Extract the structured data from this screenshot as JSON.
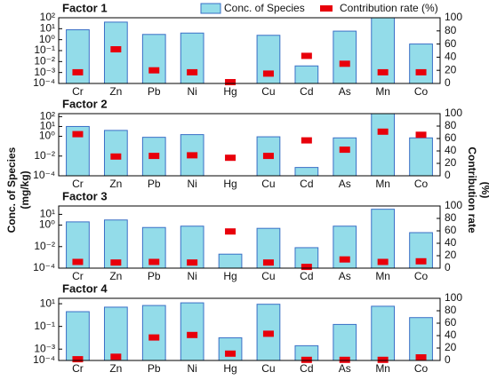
{
  "chart_data": [
    {
      "type": "bar",
      "title": "Factor 1",
      "ylabel": [
        "Conc. of Species",
        "(mg/kg)"
      ],
      "y2label": [
        "Contribution rate",
        "(%)"
      ],
      "categories": [
        "Cr",
        "Zn",
        "Pb",
        "Ni",
        "Hg",
        "Cu",
        "Cd",
        "As",
        "Mn",
        "Co"
      ],
      "log_y": true,
      "legend": "top",
      "ylim": [
        0.0001,
        100
      ],
      "yticks": [
        {
          "value": 0.0001,
          "label": "10⁻⁴"
        },
        {
          "value": 0.001,
          "label": "10⁻³"
        },
        {
          "value": 0.01,
          "label": "10⁻²"
        },
        {
          "value": 0.1,
          "label": "10⁻¹"
        },
        {
          "value": 1,
          "label": "10⁰"
        },
        {
          "value": 10,
          "label": "10¹"
        },
        {
          "value": 100,
          "label": "10²"
        }
      ],
      "y2lim": [
        0,
        100
      ],
      "y2ticks": [
        0,
        20,
        40,
        60,
        80,
        100
      ],
      "series": [
        {
          "name": "Conc. of Species",
          "color": "#93dce9",
          "values": [
            8,
            40,
            3,
            4,
            null,
            2.5,
            0.004,
            6,
            100,
            0.4
          ]
        },
        {
          "name": "Contribution rate (%)",
          "color": "#e8000b",
          "axis": "y2",
          "values": [
            17,
            52,
            20,
            17,
            2,
            15,
            42,
            30,
            17,
            17
          ]
        }
      ]
    },
    {
      "type": "bar",
      "title": "Factor 2",
      "categories": [
        "Cr",
        "Zn",
        "Pb",
        "Ni",
        "Hg",
        "Cu",
        "Cd",
        "As",
        "Mn",
        "Co"
      ],
      "log_y": true,
      "ylim": [
        0.0001,
        200
      ],
      "yticks": [
        {
          "value": 0.0001,
          "label": "10⁻⁴"
        },
        {
          "value": 0.01,
          "label": "10⁻²"
        },
        {
          "value": 1,
          "label": "10⁰"
        },
        {
          "value": 10,
          "label": "10¹"
        },
        {
          "value": 100,
          "label": "10²"
        }
      ],
      "y2lim": [
        0,
        100
      ],
      "y2ticks": [
        0,
        20,
        40,
        60,
        80,
        100
      ],
      "series": [
        {
          "color": "#93dce9",
          "values": [
            10,
            4,
            0.8,
            1.5,
            null,
            0.9,
            0.0007,
            0.7,
            200,
            0.7
          ]
        },
        {
          "color": "#e8000b",
          "axis": "y2",
          "values": [
            67,
            31,
            32,
            33,
            29,
            32,
            57,
            42,
            71,
            66
          ]
        }
      ]
    },
    {
      "type": "bar",
      "title": "Factor 3",
      "categories": [
        "Cr",
        "Zn",
        "Pb",
        "Ni",
        "Hg",
        "Cu",
        "Cd",
        "As",
        "Mn",
        "Co"
      ],
      "log_y": true,
      "ylim": [
        0.0001,
        60
      ],
      "yticks": [
        {
          "value": 0.0001,
          "label": "10⁻⁴"
        },
        {
          "value": 0.01,
          "label": "10⁻²"
        },
        {
          "value": 1,
          "label": "10⁰"
        },
        {
          "value": 10,
          "label": "10¹"
        }
      ],
      "y2lim": [
        0,
        100
      ],
      "y2ticks": [
        0,
        20,
        40,
        60,
        80,
        100
      ],
      "series": [
        {
          "color": "#93dce9",
          "values": [
            2,
            3,
            0.6,
            0.8,
            0.002,
            0.5,
            0.008,
            0.8,
            30,
            0.2
          ]
        },
        {
          "color": "#e8000b",
          "axis": "y2",
          "values": [
            10,
            9,
            10,
            9,
            59,
            9,
            2,
            14,
            10,
            11
          ]
        }
      ]
    },
    {
      "type": "bar",
      "title": "Factor 4",
      "categories": [
        "Cr",
        "Zn",
        "Pb",
        "Ni",
        "Hg",
        "Cu",
        "Cd",
        "As",
        "Mn",
        "Co"
      ],
      "log_y": true,
      "ylim": [
        0.0001,
        30
      ],
      "yticks": [
        {
          "value": 0.0001,
          "label": "10⁻⁴"
        },
        {
          "value": 0.001,
          "label": "10⁻³"
        },
        {
          "value": 0.1,
          "label": "10⁻¹"
        },
        {
          "value": 10,
          "label": "10¹"
        }
      ],
      "y2lim": [
        0,
        100
      ],
      "y2ticks": [
        0,
        20,
        40,
        60,
        80,
        100
      ],
      "series": [
        {
          "color": "#93dce9",
          "values": [
            2,
            5,
            7,
            12,
            0.01,
            9,
            0.002,
            0.15,
            6,
            0.6
          ]
        },
        {
          "color": "#e8000b",
          "axis": "y2",
          "values": [
            2,
            6,
            37,
            41,
            11,
            43,
            1,
            1,
            1,
            5
          ]
        }
      ]
    }
  ]
}
